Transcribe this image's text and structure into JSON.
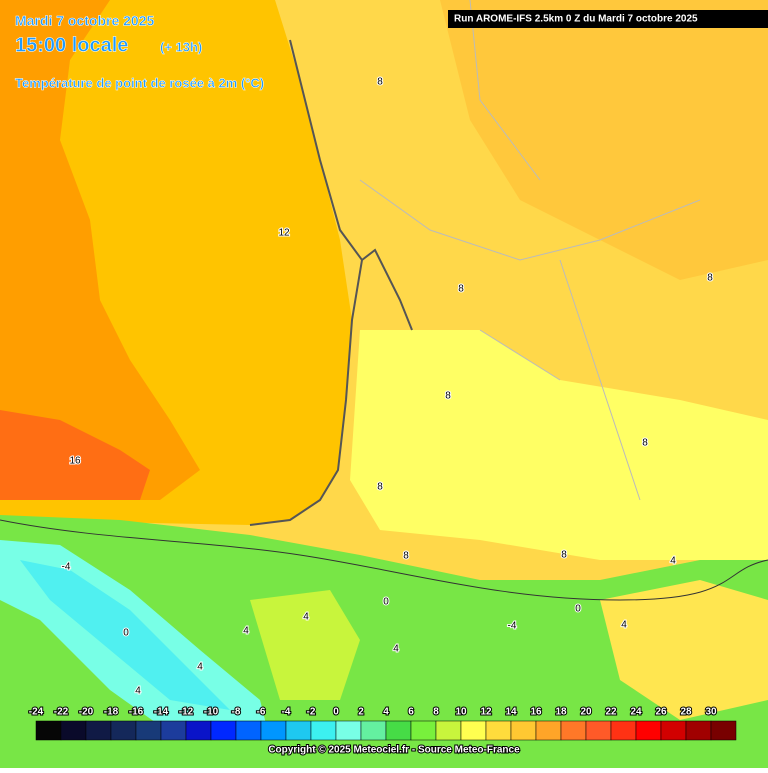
{
  "header": {
    "date": "Mardi 7 octobre 2025",
    "time": "15:00 locale",
    "lead": "(+ 13h)",
    "variable": "Température de point de rosée à 2m (°C)",
    "run": "Run AROME-IFS 2.5km 0 Z du Mardi 7 octobre 2025"
  },
  "map": {
    "contour_labels": [
      "8",
      "12",
      "8",
      "8",
      "16",
      "8",
      "8",
      "8",
      "8",
      "8",
      "-4",
      "0",
      "4",
      "0",
      "4",
      "4",
      "4",
      "4",
      "-4",
      "0",
      "4",
      "4"
    ]
  },
  "legend": {
    "ticks": [
      -24,
      -22,
      -20,
      -18,
      -16,
      -14,
      -12,
      -10,
      -8,
      -6,
      -4,
      -2,
      0,
      2,
      4,
      6,
      8,
      10,
      12,
      14,
      16,
      18,
      20,
      22,
      24,
      26,
      28,
      30
    ],
    "colors": [
      "#060606",
      "#0a0a2a",
      "#101a45",
      "#14285a",
      "#183a78",
      "#1c3c9c",
      "#0a14c8",
      "#0028ff",
      "#0064ff",
      "#0096ff",
      "#1ec8f0",
      "#3cf0f0",
      "#78ffe6",
      "#64f0a0",
      "#46dc46",
      "#78f03c",
      "#c8f53c",
      "#ffff50",
      "#ffdc3c",
      "#ffc832",
      "#ffa528",
      "#ff7828",
      "#ff5a28",
      "#ff3214",
      "#ff0000",
      "#d20000",
      "#a00000",
      "#780000"
    ]
  },
  "footer": {
    "copyright": "Copyright © 2025 Meteociel.fr - Source Meteo-France"
  }
}
